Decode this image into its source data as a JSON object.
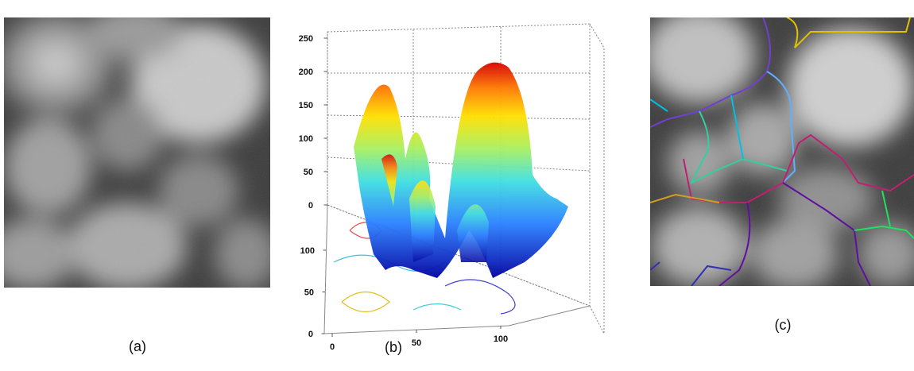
{
  "panels": [
    {
      "label": "(a)"
    },
    {
      "label": "(b)",
      "zticks": [
        0,
        50,
        100,
        150,
        200,
        250
      ],
      "yticks": [
        0,
        50,
        100
      ],
      "xticks": [
        0,
        50,
        100
      ]
    },
    {
      "label": "(c)"
    }
  ]
}
